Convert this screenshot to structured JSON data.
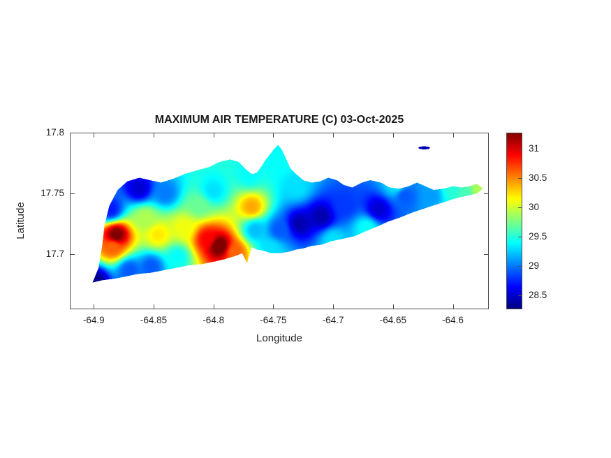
{
  "chart_data": {
    "type": "heatmap",
    "title": "MAXIMUM AIR TEMPERATURE (C) 03-Oct-2025",
    "xlabel": "Longitude",
    "ylabel": "Latitude",
    "colormap": "jet",
    "legend_position": "colorbar-right",
    "grid": false,
    "xlim": [
      -64.92,
      -64.57
    ],
    "ylim": [
      17.655,
      17.8
    ],
    "clim": [
      28.26,
      31.27
    ],
    "xticks": [
      -64.9,
      -64.85,
      -64.8,
      -64.75,
      -64.7,
      -64.65,
      -64.6
    ],
    "xtick_labels": [
      "-64.9",
      "-64.85",
      "-64.8",
      "-64.75",
      "-64.7",
      "-64.65",
      "-64.6"
    ],
    "yticks": [
      17.8,
      17.75,
      17.7
    ],
    "ytick_labels": [
      "17.8",
      "17.75",
      "17.7"
    ],
    "colorbar_ticks": [
      31,
      30.5,
      30,
      29.5,
      29,
      28.5
    ],
    "colorbar_tick_labels": [
      "31",
      "30.5",
      "30",
      "29.5",
      "29",
      "28.5"
    ],
    "island_outline": [
      [
        -64.901,
        17.677
      ],
      [
        -64.896,
        17.689
      ],
      [
        -64.893,
        17.707
      ],
      [
        -64.891,
        17.724
      ],
      [
        -64.887,
        17.74
      ],
      [
        -64.88,
        17.753
      ],
      [
        -64.872,
        17.76
      ],
      [
        -64.862,
        17.763
      ],
      [
        -64.853,
        17.761
      ],
      [
        -64.844,
        17.759
      ],
      [
        -64.834,
        17.762
      ],
      [
        -64.824,
        17.766
      ],
      [
        -64.814,
        17.769
      ],
      [
        -64.803,
        17.772
      ],
      [
        -64.795,
        17.776
      ],
      [
        -64.786,
        17.778
      ],
      [
        -64.779,
        17.776
      ],
      [
        -64.773,
        17.77
      ],
      [
        -64.768,
        17.766
      ],
      [
        -64.764,
        17.767
      ],
      [
        -64.76,
        17.772
      ],
      [
        -64.757,
        17.777
      ],
      [
        -64.753,
        17.782
      ],
      [
        -64.749,
        17.787
      ],
      [
        -64.746,
        17.79
      ],
      [
        -64.743,
        17.786
      ],
      [
        -64.739,
        17.778
      ],
      [
        -64.736,
        17.771
      ],
      [
        -64.731,
        17.766
      ],
      [
        -64.725,
        17.761
      ],
      [
        -64.718,
        17.759
      ],
      [
        -64.711,
        17.76
      ],
      [
        -64.704,
        17.763
      ],
      [
        -64.697,
        17.761
      ],
      [
        -64.691,
        17.757
      ],
      [
        -64.684,
        17.755
      ],
      [
        -64.676,
        17.759
      ],
      [
        -64.669,
        17.761
      ],
      [
        -64.66,
        17.759
      ],
      [
        -64.653,
        17.755
      ],
      [
        -64.645,
        17.754
      ],
      [
        -64.637,
        17.756
      ],
      [
        -64.63,
        17.759
      ],
      [
        -64.623,
        17.756
      ],
      [
        -64.616,
        17.753
      ],
      [
        -64.608,
        17.754
      ],
      [
        -64.6,
        17.756
      ],
      [
        -64.593,
        17.755
      ],
      [
        -64.586,
        17.756
      ],
      [
        -64.58,
        17.758
      ],
      [
        -64.575,
        17.754
      ],
      [
        -64.58,
        17.75
      ],
      [
        -64.589,
        17.748
      ],
      [
        -64.598,
        17.746
      ],
      [
        -64.607,
        17.743
      ],
      [
        -64.617,
        17.74
      ],
      [
        -64.626,
        17.737
      ],
      [
        -64.635,
        17.734
      ],
      [
        -64.645,
        17.73
      ],
      [
        -64.654,
        17.727
      ],
      [
        -64.663,
        17.723
      ],
      [
        -64.673,
        17.719
      ],
      [
        -64.682,
        17.715
      ],
      [
        -64.691,
        17.713
      ],
      [
        -64.701,
        17.711
      ],
      [
        -64.71,
        17.708
      ],
      [
        -64.718,
        17.707
      ],
      [
        -64.725,
        17.705
      ],
      [
        -64.731,
        17.704
      ],
      [
        -64.738,
        17.702
      ],
      [
        -64.745,
        17.701
      ],
      [
        -64.752,
        17.701
      ],
      [
        -64.758,
        17.703
      ],
      [
        -64.764,
        17.704
      ],
      [
        -64.768,
        17.706
      ],
      [
        -64.772,
        17.693
      ],
      [
        -64.776,
        17.701
      ],
      [
        -64.781,
        17.699
      ],
      [
        -64.791,
        17.696
      ],
      [
        -64.8,
        17.694
      ],
      [
        -64.81,
        17.692
      ],
      [
        -64.821,
        17.691
      ],
      [
        -64.831,
        17.689
      ],
      [
        -64.842,
        17.687
      ],
      [
        -64.852,
        17.685
      ],
      [
        -64.863,
        17.684
      ],
      [
        -64.873,
        17.682
      ],
      [
        -64.883,
        17.68
      ],
      [
        -64.892,
        17.679
      ]
    ],
    "islet_outline": [
      [
        -64.619,
        17.7875
      ],
      [
        -64.62,
        17.7883
      ],
      [
        -64.6225,
        17.7887
      ],
      [
        -64.6255,
        17.7887
      ],
      [
        -64.628,
        17.7883
      ],
      [
        -64.629,
        17.7875
      ],
      [
        -64.628,
        17.7867
      ],
      [
        -64.6255,
        17.7863
      ],
      [
        -64.6225,
        17.7863
      ],
      [
        -64.62,
        17.7867
      ]
    ],
    "samples": [
      {
        "lon": -64.881,
        "lat": 17.716,
        "tmax": 31.3
      },
      {
        "lon": -64.884,
        "lat": 17.706,
        "tmax": 30.6
      },
      {
        "lon": -64.795,
        "lat": 17.707,
        "tmax": 31.4
      },
      {
        "lon": -64.805,
        "lat": 17.713,
        "tmax": 30.9
      },
      {
        "lon": -64.782,
        "lat": 17.702,
        "tmax": 30.6
      },
      {
        "lon": -64.768,
        "lat": 17.739,
        "tmax": 30.4
      },
      {
        "lon": -64.846,
        "lat": 17.716,
        "tmax": 30.2
      },
      {
        "lon": -64.825,
        "lat": 17.722,
        "tmax": 30.1
      },
      {
        "lon": -64.857,
        "lat": 17.73,
        "tmax": 29.9
      },
      {
        "lon": -64.862,
        "lat": 17.754,
        "tmax": 28.5
      },
      {
        "lon": -64.84,
        "lat": 17.75,
        "tmax": 29.0
      },
      {
        "lon": -64.886,
        "lat": 17.737,
        "tmax": 28.7
      },
      {
        "lon": -64.899,
        "lat": 17.678,
        "tmax": 28.3
      },
      {
        "lon": -64.87,
        "lat": 17.687,
        "tmax": 28.9
      },
      {
        "lon": -64.852,
        "lat": 17.69,
        "tmax": 28.9
      },
      {
        "lon": -64.728,
        "lat": 17.725,
        "tmax": 28.4
      },
      {
        "lon": -64.71,
        "lat": 17.731,
        "tmax": 28.4
      },
      {
        "lon": -64.745,
        "lat": 17.72,
        "tmax": 28.9
      },
      {
        "lon": -64.69,
        "lat": 17.74,
        "tmax": 28.8
      },
      {
        "lon": -64.662,
        "lat": 17.737,
        "tmax": 28.5
      },
      {
        "lon": -64.64,
        "lat": 17.748,
        "tmax": 28.9
      },
      {
        "lon": -64.618,
        "lat": 17.748,
        "tmax": 29.1
      },
      {
        "lon": -64.8,
        "lat": 17.752,
        "tmax": 29.3
      },
      {
        "lon": -64.77,
        "lat": 17.765,
        "tmax": 29.4
      },
      {
        "lon": -64.745,
        "lat": 17.775,
        "tmax": 29.4
      },
      {
        "lon": -64.73,
        "lat": 17.755,
        "tmax": 29.3
      },
      {
        "lon": -64.765,
        "lat": 17.72,
        "tmax": 29.2
      },
      {
        "lon": -64.752,
        "lat": 17.705,
        "tmax": 29.3
      },
      {
        "lon": -64.7,
        "lat": 17.712,
        "tmax": 29.3
      },
      {
        "lon": -64.672,
        "lat": 17.722,
        "tmax": 29.4
      },
      {
        "lon": -64.6,
        "lat": 17.752,
        "tmax": 29.5
      },
      {
        "lon": -64.578,
        "lat": 17.753,
        "tmax": 29.9
      },
      {
        "lon": -64.648,
        "lat": 17.756,
        "tmax": 29.3
      },
      {
        "lon": -64.59,
        "lat": 17.75,
        "tmax": 29.6
      },
      {
        "lon": -64.812,
        "lat": 17.74,
        "tmax": 29.7
      },
      {
        "lon": -64.83,
        "lat": 17.698,
        "tmax": 29.4
      },
      {
        "lon": -64.624,
        "lat": 17.7875,
        "tmax": 28.4
      }
    ]
  }
}
